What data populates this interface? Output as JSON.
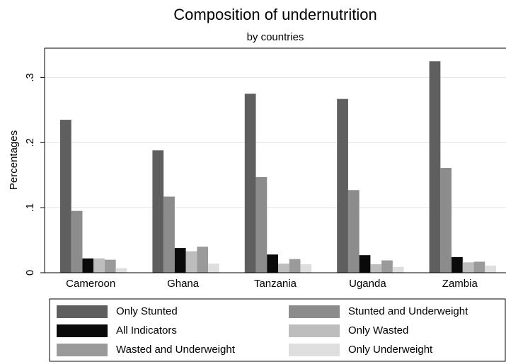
{
  "chart_data": {
    "type": "bar",
    "title": "Composition of undernutrition",
    "subtitle": "by countries",
    "y_label": "Percentages",
    "categories": [
      "Cameroon",
      "Ghana",
      "Tanzania",
      "Uganda",
      "Zambia"
    ],
    "series": [
      {
        "name": "Only Stunted",
        "color": "#5f5f5f",
        "values": [
          0.235,
          0.188,
          0.275,
          0.267,
          0.325
        ]
      },
      {
        "name": "Stunted and Underweight",
        "color": "#8c8c8c",
        "values": [
          0.095,
          0.117,
          0.147,
          0.127,
          0.161
        ]
      },
      {
        "name": "All Indicators",
        "color": "#0a0a0a",
        "values": [
          0.022,
          0.038,
          0.028,
          0.027,
          0.024
        ]
      },
      {
        "name": "Only Wasted",
        "color": "#bdbdbd",
        "values": [
          0.022,
          0.033,
          0.014,
          0.013,
          0.016
        ]
      },
      {
        "name": "Wasted and Underweight",
        "color": "#9a9a9a",
        "values": [
          0.02,
          0.04,
          0.021,
          0.019,
          0.017
        ]
      },
      {
        "name": "Only Underweight",
        "color": "#dedede",
        "values": [
          0.007,
          0.014,
          0.013,
          0.009,
          0.011
        ]
      }
    ],
    "ylim": [
      0,
      0.345
    ],
    "yticks": [
      {
        "value": 0,
        "label": "0"
      },
      {
        "value": 0.1,
        "label": ".1"
      },
      {
        "value": 0.2,
        "label": ".2"
      },
      {
        "value": 0.3,
        "label": ".3"
      }
    ],
    "grid": true,
    "legend": "bottom"
  }
}
